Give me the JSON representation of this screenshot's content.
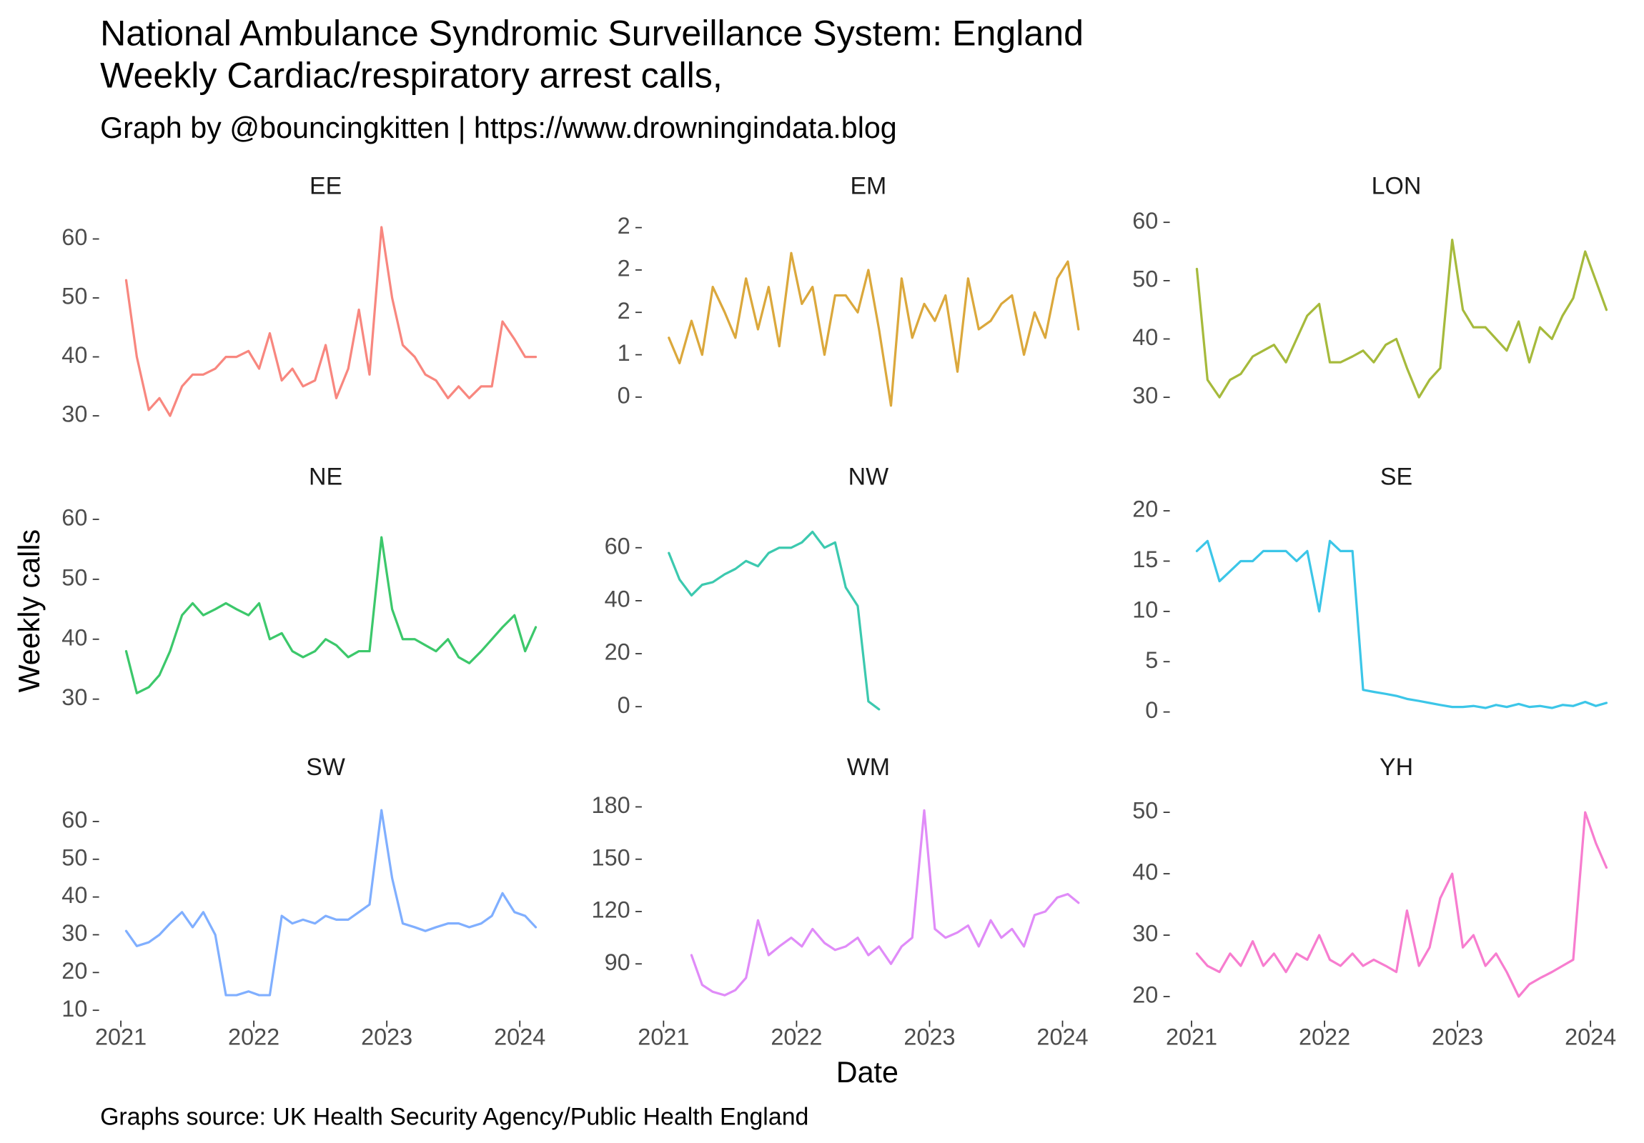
{
  "title": [
    "National Ambulance Syndromic Surveillance System: England",
    "Weekly Cardiac/respiratory arrest calls,"
  ],
  "subtitle": "Graph by @bouncingkitten | https://www.drowningindata.blog",
  "ylabel": "Weekly calls",
  "xlabel": "Date",
  "caption": "Graphs source: UK Health Security Agency/Public Health England",
  "chart_data": [
    {
      "type": "line",
      "title": "EE",
      "color": "#F8877F",
      "x": [
        2021.04,
        2021.12,
        2021.21,
        2021.29,
        2021.37,
        2021.46,
        2021.54,
        2021.62,
        2021.71,
        2021.79,
        2021.87,
        2021.96,
        2022.04,
        2022.12,
        2022.21,
        2022.29,
        2022.37,
        2022.46,
        2022.54,
        2022.62,
        2022.71,
        2022.79,
        2022.87,
        2022.96,
        2023.04,
        2023.12,
        2023.21,
        2023.29,
        2023.37,
        2023.46,
        2023.54,
        2023.62,
        2023.71,
        2023.79,
        2023.87,
        2023.96,
        2024.04,
        2024.12
      ],
      "values": [
        53,
        40,
        31,
        33,
        30,
        35,
        37,
        37,
        38,
        40,
        40,
        41,
        38,
        44,
        36,
        38,
        35,
        36,
        42,
        33,
        38,
        48,
        37,
        62,
        50,
        42,
        40,
        37,
        36,
        33,
        35,
        33,
        35,
        35,
        46,
        43,
        40,
        40
      ],
      "xlim": [
        2020.86,
        2024.22
      ],
      "ylim": [
        28,
        64.8
      ],
      "yticks": [
        30,
        40,
        50,
        60
      ]
    },
    {
      "type": "line",
      "title": "EM",
      "color": "#DBA83C",
      "x": [
        2021.04,
        2021.12,
        2021.21,
        2021.29,
        2021.37,
        2021.46,
        2021.54,
        2021.62,
        2021.71,
        2021.79,
        2021.87,
        2021.96,
        2022.04,
        2022.12,
        2022.21,
        2022.29,
        2022.37,
        2022.46,
        2022.54,
        2022.62,
        2022.71,
        2022.79,
        2022.87,
        2022.96,
        2023.04,
        2023.12,
        2023.21,
        2023.29,
        2023.37,
        2023.46,
        2023.54,
        2023.62,
        2023.71,
        2023.79,
        2023.87,
        2023.96,
        2024.04,
        2024.12
      ],
      "values": [
        1.2,
        0.9,
        1.4,
        1.0,
        1.8,
        1.5,
        1.2,
        1.9,
        1.3,
        1.8,
        1.1,
        2.2,
        1.6,
        1.8,
        1.0,
        1.7,
        1.7,
        1.5,
        2.0,
        1.3,
        0.4,
        1.9,
        1.2,
        1.6,
        1.4,
        1.7,
        0.8,
        1.9,
        1.3,
        1.4,
        1.6,
        1.7,
        1.0,
        1.5,
        1.2,
        1.9,
        2.1,
        1.3
      ],
      "xlim": [
        2020.86,
        2024.22
      ],
      "ylim": [
        0.14,
        2.7
      ],
      "yticks": [
        {
          "value": 0.5,
          "label": "0"
        },
        1,
        {
          "value": 1.5,
          "label": "2"
        },
        2,
        {
          "value": 2.5,
          "label": "2"
        }
      ]
    },
    {
      "type": "line",
      "title": "LON",
      "color": "#A6BA3C",
      "x": [
        2021.04,
        2021.12,
        2021.21,
        2021.29,
        2021.37,
        2021.46,
        2021.54,
        2021.62,
        2021.71,
        2021.79,
        2021.87,
        2021.96,
        2022.04,
        2022.12,
        2022.21,
        2022.29,
        2022.37,
        2022.46,
        2022.54,
        2022.62,
        2022.71,
        2022.79,
        2022.87,
        2022.96,
        2023.04,
        2023.12,
        2023.21,
        2023.29,
        2023.37,
        2023.46,
        2023.54,
        2023.62,
        2023.71,
        2023.79,
        2023.87,
        2023.96,
        2024.04,
        2024.12
      ],
      "values": [
        52,
        33,
        30,
        33,
        34,
        37,
        38,
        39,
        36,
        40,
        44,
        46,
        36,
        36,
        37,
        38,
        36,
        39,
        40,
        35,
        30,
        33,
        35,
        57,
        45,
        42,
        42,
        40,
        38,
        43,
        36,
        42,
        40,
        44,
        47,
        55,
        50,
        45
      ],
      "xlim": [
        2020.86,
        2024.22
      ],
      "ylim": [
        24.8,
        62
      ],
      "yticks": [
        30,
        40,
        50,
        60
      ]
    },
    {
      "type": "line",
      "title": "NE",
      "color": "#3CC86B",
      "x": [
        2021.04,
        2021.12,
        2021.21,
        2021.29,
        2021.37,
        2021.46,
        2021.54,
        2021.62,
        2021.71,
        2021.79,
        2021.87,
        2021.96,
        2022.04,
        2022.12,
        2022.21,
        2022.29,
        2022.37,
        2022.46,
        2022.54,
        2022.62,
        2022.71,
        2022.79,
        2022.87,
        2022.96,
        2023.04,
        2023.12,
        2023.21,
        2023.29,
        2023.37,
        2023.46,
        2023.54,
        2023.62,
        2023.71,
        2023.79,
        2023.87,
        2023.96,
        2024.04,
        2024.12
      ],
      "values": [
        38,
        31,
        32,
        34,
        38,
        44,
        46,
        44,
        45,
        46,
        45,
        44,
        46,
        40,
        41,
        38,
        37,
        38,
        40,
        39,
        37,
        38,
        38,
        57,
        45,
        40,
        40,
        39,
        38,
        40,
        37,
        36,
        38,
        40,
        42,
        44,
        38,
        42
      ],
      "xlim": [
        2020.86,
        2024.22
      ],
      "ylim": [
        26.8,
        63
      ],
      "yticks": [
        30,
        40,
        50,
        60
      ]
    },
    {
      "type": "line",
      "title": "NW",
      "color": "#3CC9AF",
      "x": [
        2021.04,
        2021.12,
        2021.21,
        2021.29,
        2021.37,
        2021.46,
        2021.54,
        2021.62,
        2021.71,
        2021.79,
        2021.87,
        2021.96,
        2022.04,
        2022.12,
        2022.21,
        2022.29,
        2022.37,
        2022.46,
        2022.54,
        2022.62,
        2022.71,
        2022.79,
        2022.87,
        2022.96,
        2023.04,
        2023.12,
        2023.21,
        2023.29,
        2023.37,
        2023.46,
        2023.54,
        2023.62,
        2023.71,
        2023.79,
        2023.87,
        2023.96,
        2024.04,
        2024.12
      ],
      "values": [
        58,
        48,
        42,
        46,
        47,
        50,
        52,
        55,
        53,
        58,
        60,
        60,
        62,
        66,
        60,
        62,
        45,
        38,
        2,
        -1,
        null,
        null,
        null,
        null,
        null,
        null,
        null,
        null,
        null,
        null,
        null,
        null,
        null,
        null,
        null,
        null,
        null,
        null
      ],
      "xlim": [
        2020.86,
        2024.22
      ],
      "ylim": [
        -4.4,
        77.5
      ],
      "yticks": [
        0,
        20,
        40,
        60
      ]
    },
    {
      "type": "line",
      "title": "SE",
      "color": "#3CC6E8",
      "x": [
        2021.04,
        2021.12,
        2021.21,
        2021.29,
        2021.37,
        2021.46,
        2021.54,
        2021.62,
        2021.71,
        2021.79,
        2021.87,
        2021.96,
        2022.04,
        2022.12,
        2022.21,
        2022.29,
        2022.37,
        2022.46,
        2022.54,
        2022.62,
        2022.71,
        2022.79,
        2022.87,
        2022.96,
        2023.04,
        2023.12,
        2023.21,
        2023.29,
        2023.37,
        2023.46,
        2023.54,
        2023.62,
        2023.71,
        2023.79,
        2023.87,
        2023.96,
        2024.04,
        2024.12
      ],
      "values": [
        16,
        17,
        13,
        14,
        15,
        15,
        16,
        16,
        16,
        15,
        16,
        10,
        17,
        16,
        16,
        2.2,
        2.0,
        1.8,
        1.6,
        1.3,
        1.1,
        0.9,
        0.7,
        0.5,
        0.5,
        0.6,
        0.4,
        0.7,
        0.5,
        0.8,
        0.5,
        0.6,
        0.4,
        0.7,
        0.6,
        1.0,
        0.6,
        0.9
      ],
      "xlim": [
        2020.86,
        2024.22
      ],
      "ylim": [
        -0.63,
        20.94
      ],
      "yticks": [
        0,
        5,
        10,
        15,
        20
      ]
    },
    {
      "type": "line",
      "title": "SW",
      "color": "#80AFFF",
      "x": [
        2021.04,
        2021.12,
        2021.21,
        2021.29,
        2021.37,
        2021.46,
        2021.54,
        2021.62,
        2021.71,
        2021.79,
        2021.87,
        2021.96,
        2022.04,
        2022.12,
        2022.21,
        2022.29,
        2022.37,
        2022.46,
        2022.54,
        2022.62,
        2022.71,
        2022.79,
        2022.87,
        2022.96,
        2023.04,
        2023.12,
        2023.21,
        2023.29,
        2023.37,
        2023.46,
        2023.54,
        2023.62,
        2023.71,
        2023.79,
        2023.87,
        2023.96,
        2024.04,
        2024.12
      ],
      "values": [
        31,
        27,
        28,
        30,
        33,
        36,
        32,
        36,
        30,
        14,
        14,
        15,
        14,
        14,
        35,
        33,
        34,
        33,
        35,
        34,
        34,
        36,
        38,
        63,
        45,
        33,
        32,
        31,
        32,
        33,
        33,
        32,
        33,
        35,
        41,
        36,
        35,
        32
      ],
      "xlim": [
        2020.86,
        2024.22
      ],
      "ylim": [
        8.1,
        67.8
      ],
      "yticks": [
        10,
        20,
        30,
        40,
        50,
        60
      ],
      "xticks": [
        2021,
        2022,
        2023,
        2024
      ]
    },
    {
      "type": "line",
      "title": "WM",
      "color": "#E08CF8",
      "x": [
        2021.04,
        2021.12,
        2021.21,
        2021.29,
        2021.37,
        2021.46,
        2021.54,
        2021.62,
        2021.71,
        2021.79,
        2021.87,
        2021.96,
        2022.04,
        2022.12,
        2022.21,
        2022.29,
        2022.37,
        2022.46,
        2022.54,
        2022.62,
        2022.71,
        2022.79,
        2022.87,
        2022.96,
        2023.04,
        2023.12,
        2023.21,
        2023.29,
        2023.37,
        2023.46,
        2023.54,
        2023.62,
        2023.71,
        2023.79,
        2023.87,
        2023.96,
        2024.04,
        2024.12
      ],
      "values": [
        null,
        null,
        95,
        78,
        74,
        72,
        75,
        82,
        115,
        95,
        100,
        105,
        100,
        110,
        102,
        98,
        100,
        105,
        95,
        100,
        90,
        100,
        105,
        178,
        110,
        105,
        108,
        112,
        100,
        115,
        105,
        110,
        100,
        118,
        120,
        128,
        130,
        125
      ],
      "xlim": [
        2020.86,
        2024.22
      ],
      "ylim": [
        59.3,
        188.5
      ],
      "yticks": [
        90,
        120,
        150,
        180
      ],
      "xticks": [
        2021,
        2022,
        2023,
        2024
      ]
    },
    {
      "type": "line",
      "title": "YH",
      "color": "#F77DCF",
      "x": [
        2021.04,
        2021.12,
        2021.21,
        2021.29,
        2021.37,
        2021.46,
        2021.54,
        2021.62,
        2021.71,
        2021.79,
        2021.87,
        2021.96,
        2022.04,
        2022.12,
        2022.21,
        2022.29,
        2022.37,
        2022.46,
        2022.54,
        2022.62,
        2022.71,
        2022.79,
        2022.87,
        2022.96,
        2023.04,
        2023.12,
        2023.21,
        2023.29,
        2023.37,
        2023.46,
        2023.54,
        2023.62,
        2023.71,
        2023.79,
        2023.87,
        2023.96,
        2024.04,
        2024.12
      ],
      "values": [
        27,
        25,
        24,
        27,
        25,
        29,
        25,
        27,
        24,
        27,
        26,
        30,
        26,
        25,
        27,
        25,
        26,
        25,
        24,
        34,
        25,
        28,
        36,
        40,
        28,
        30,
        25,
        27,
        24,
        20,
        22,
        23,
        24,
        25,
        26,
        50,
        45,
        41
      ],
      "xlim": [
        2020.86,
        2024.22
      ],
      "ylim": [
        16.6,
        53.3
      ],
      "yticks": [
        20,
        30,
        40,
        50
      ],
      "xticks": [
        2021,
        2022,
        2023,
        2024
      ]
    }
  ]
}
